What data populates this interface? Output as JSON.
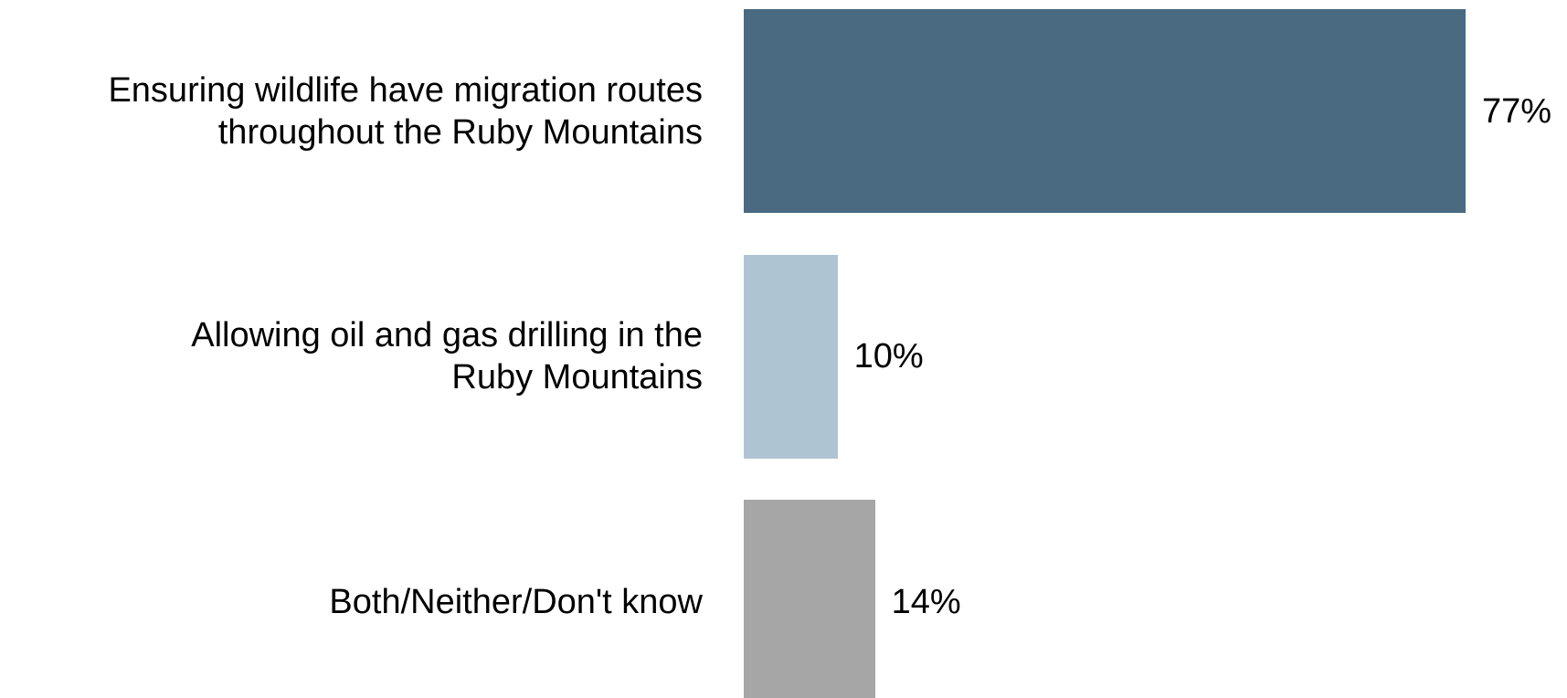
{
  "chart_data": {
    "type": "bar",
    "orientation": "horizontal",
    "categories": [
      "Ensuring wildlife have migration routes throughout the Ruby Mountains",
      "Allowing oil and gas drilling in the Ruby Mountains",
      "Both/Neither/Don't know"
    ],
    "values": [
      77,
      10,
      14
    ],
    "value_labels": [
      "77%",
      "10%",
      "14%"
    ],
    "colors": [
      "#4a6a82",
      "#afc4d3",
      "#a6a6a6"
    ]
  }
}
